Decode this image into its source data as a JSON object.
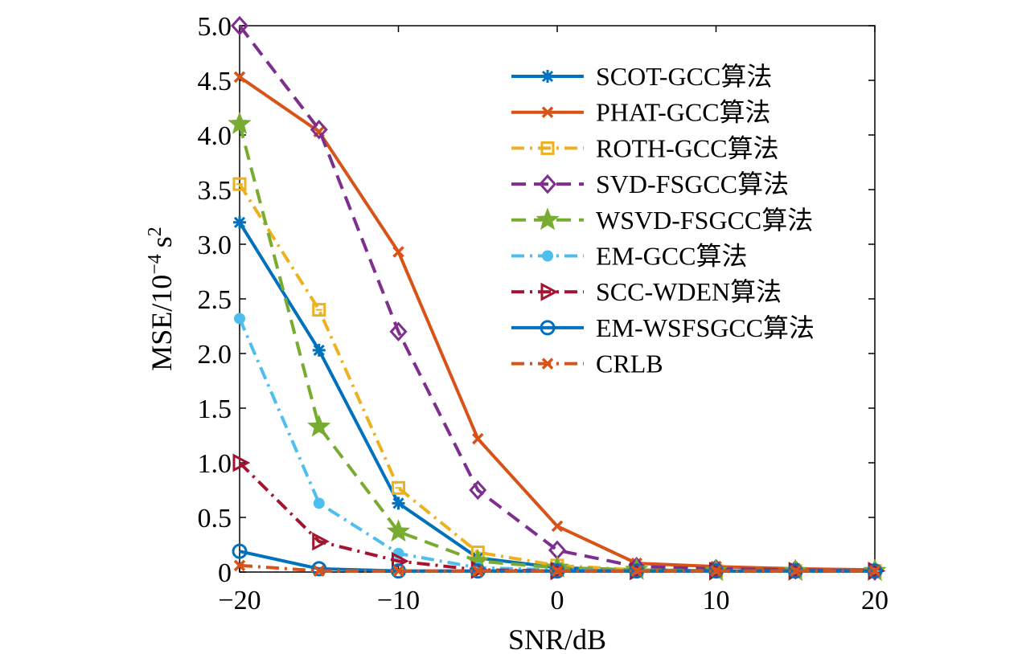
{
  "chart_data": {
    "type": "line",
    "title": "",
    "xlabel": "SNR/dB",
    "ylabel_prefix": "MSE/10",
    "ylabel_exp": "−4",
    "ylabel_unit": "s",
    "ylabel_unit_exp": "2",
    "xlim": [
      -20,
      20
    ],
    "ylim": [
      0,
      5
    ],
    "xticks": [
      -20,
      -10,
      0,
      10,
      20
    ],
    "xtick_labels": [
      "−20",
      "−10",
      "0",
      "10",
      "20"
    ],
    "yticks": [
      0,
      0.5,
      1,
      1.5,
      2,
      2.5,
      3,
      3.5,
      4,
      4.5,
      5
    ],
    "ytick_labels": [
      "0",
      "0.5",
      "1.0",
      "1.5",
      "2.0",
      "2.5",
      "3.0",
      "3.5",
      "4.0",
      "4.5",
      "5.0"
    ],
    "grid": false,
    "legend_position": "top-right",
    "x": [
      -20,
      -15,
      -10,
      -5,
      0,
      5,
      10,
      15,
      20
    ],
    "series": [
      {
        "name": "SCOT-GCC算法",
        "color": "#0072bd",
        "dash": "solid",
        "marker": "asterisk",
        "values": [
          3.2,
          2.03,
          0.63,
          0.13,
          0.04,
          0.02,
          0.01,
          0.01,
          0.01
        ]
      },
      {
        "name": "PHAT-GCC算法",
        "color": "#d95319",
        "dash": "solid",
        "marker": "x",
        "values": [
          4.53,
          4.03,
          2.93,
          1.22,
          0.42,
          0.08,
          0.05,
          0.03,
          0.02
        ]
      },
      {
        "name": "ROTH-GCC算法",
        "color": "#edb120",
        "dash": "dashdot",
        "marker": "square",
        "values": [
          3.55,
          2.4,
          0.77,
          0.18,
          0.06,
          0.02,
          0.01,
          0.01,
          0.01
        ]
      },
      {
        "name": "SVD-FSGCC算法",
        "color": "#7e2f8e",
        "dash": "dashed",
        "marker": "diamond",
        "values": [
          5.0,
          4.05,
          2.2,
          0.75,
          0.2,
          0.05,
          0.03,
          0.02,
          0.01
        ]
      },
      {
        "name": "WSVD-FSGCC算法",
        "color": "#77ac30",
        "dash": "dashed",
        "marker": "star",
        "values": [
          4.1,
          1.33,
          0.37,
          0.1,
          0.04,
          0.02,
          0.01,
          0.01,
          0.01
        ]
      },
      {
        "name": "EM-GCC算法",
        "color": "#4dbeee",
        "dash": "dashdot",
        "marker": "dot",
        "values": [
          2.32,
          0.63,
          0.17,
          0.04,
          0.02,
          0.01,
          0.01,
          0.01,
          0.01
        ]
      },
      {
        "name": "SCC-WDEN算法",
        "color": "#a2142f",
        "dash": "dashdot",
        "marker": "triangle-right",
        "values": [
          1.0,
          0.28,
          0.1,
          0.02,
          0.01,
          0.01,
          0.01,
          0.01,
          0.01
        ]
      },
      {
        "name": "EM-WSFSGCC算法",
        "color": "#0072bd",
        "dash": "solid",
        "marker": "circle",
        "values": [
          0.19,
          0.03,
          0.01,
          0.01,
          0.01,
          0.01,
          0.01,
          0.01,
          0.01
        ]
      },
      {
        "name": "CRLB",
        "color": "#d95319",
        "dash": "dashdot",
        "marker": "x",
        "values": [
          0.06,
          0.01,
          0.01,
          0.01,
          0.01,
          0.01,
          0.01,
          0.01,
          0.01
        ]
      }
    ]
  }
}
